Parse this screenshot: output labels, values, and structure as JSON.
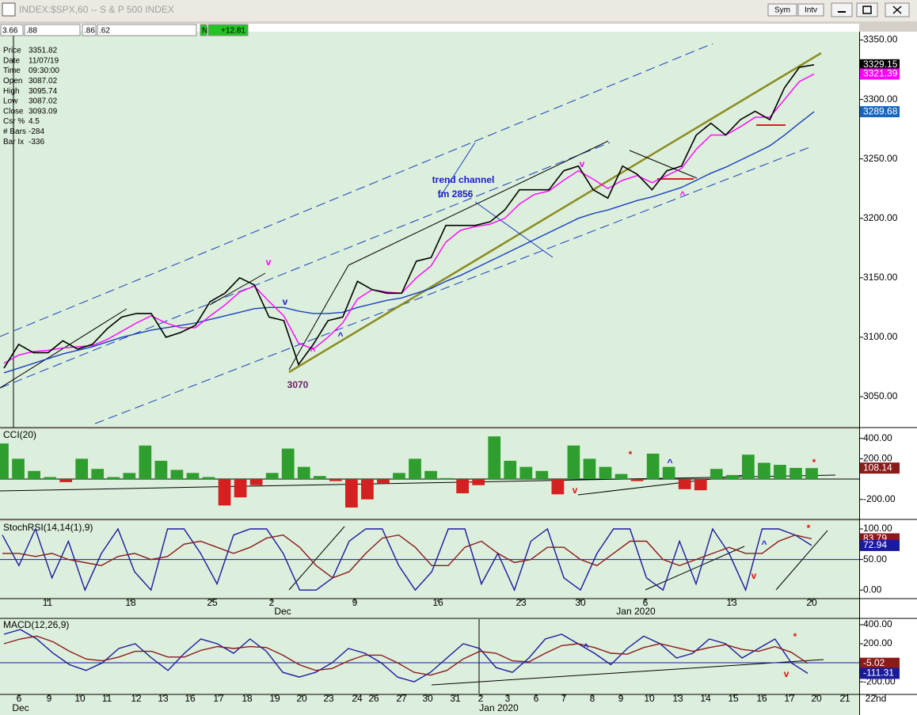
{
  "window": {
    "title": "INDEX:$SPX,60 -- S & P 500 INDEX",
    "buttons": [
      "Sym",
      "Intv"
    ]
  },
  "toolbar": [
    "3.66",
    ".88",
    ".86",
    ".62",
    "N",
    "+12.81"
  ],
  "info": {
    "labels": [
      "Price",
      "Date",
      "Time",
      "Open",
      "High",
      "Low",
      "Close",
      "Csr %",
      "# Bars",
      "Bar Ix"
    ],
    "values": [
      "3351.82",
      "11/07/19",
      "09:30:00",
      "3087.02",
      "3095.74",
      "3087.02",
      "3093.09",
      "4.5",
      "-284",
      "-336"
    ]
  },
  "chart_data": [
    {
      "type": "line",
      "ylim": [
        3024,
        3357
      ],
      "yticks": [
        {
          "value": 3050,
          "label": "3050.00"
        },
        {
          "value": 3100,
          "label": "3100.00"
        },
        {
          "value": 3150,
          "label": "3150.00"
        },
        {
          "value": 3200,
          "label": "3200.00"
        },
        {
          "value": 3250,
          "label": "3250.00"
        },
        {
          "value": 3300,
          "label": "3300.00"
        },
        {
          "value": 3350,
          "label": "3350.00"
        }
      ],
      "series": [
        {
          "color": "#1a3fbf",
          "values": [
            3070,
            3074,
            3078,
            3082,
            3086,
            3089,
            3092,
            3096,
            3100,
            3103,
            3106,
            3108,
            3110,
            3112,
            3115,
            3118,
            3121,
            3124,
            3125,
            3125,
            3122,
            3120,
            3120,
            3121,
            3125,
            3128,
            3131,
            3133,
            3137,
            3141,
            3147,
            3152,
            3158,
            3164,
            3170,
            3176,
            3182,
            3188,
            3194,
            3200,
            3204,
            3207,
            3211,
            3215,
            3218,
            3222,
            3226,
            3232,
            3238,
            3243,
            3249,
            3255,
            3261,
            3270,
            3280,
            3289.68
          ]
        },
        {
          "color": "#ff00ff",
          "values": [
            3078,
            3085,
            3088,
            3089,
            3091,
            3092,
            3093,
            3098,
            3105,
            3112,
            3118,
            3112,
            3108,
            3108,
            3118,
            3127,
            3138,
            3143,
            3130,
            3118,
            3095,
            3090,
            3100,
            3112,
            3132,
            3140,
            3138,
            3137,
            3150,
            3160,
            3180,
            3190,
            3193,
            3195,
            3200,
            3212,
            3220,
            3223,
            3232,
            3240,
            3233,
            3225,
            3232,
            3236,
            3230,
            3236,
            3242,
            3258,
            3270,
            3270,
            3277,
            3285,
            3285,
            3300,
            3315,
            3321.39
          ]
        },
        {
          "color": "#000000",
          "values": [
            3074,
            3094,
            3087,
            3087,
            3097,
            3090,
            3094,
            3107,
            3117,
            3120,
            3120,
            3100,
            3104,
            3110,
            3130,
            3137,
            3150,
            3144,
            3117,
            3114,
            3077,
            3094,
            3114,
            3117,
            3147,
            3140,
            3137,
            3137,
            3164,
            3167,
            3194,
            3194,
            3194,
            3197,
            3207,
            3224,
            3224,
            3224,
            3240,
            3244,
            3224,
            3217,
            3244,
            3237,
            3224,
            3240,
            3244,
            3270,
            3280,
            3270,
            3283,
            3290,
            3283,
            3310,
            3327,
            3329.15
          ]
        }
      ],
      "markers": [
        {
          "value": 3329.15,
          "color": "#000000"
        },
        {
          "value": 3321.39,
          "color": "#ff00ff"
        },
        {
          "value": 3289.68,
          "color": "#1565c0"
        }
      ],
      "annotations": [
        {
          "text": "trend channel",
          "color": "#1a1acc"
        },
        {
          "text": "fm 2856",
          "color": "#1a1acc"
        },
        {
          "text": "3070",
          "color": "#6b1f6b"
        },
        {
          "text": "v",
          "color": "#ff00ff"
        },
        {
          "text": "v",
          "color": "#1a1acc"
        },
        {
          "text": "^",
          "color": "#ff00ff"
        },
        {
          "text": "^",
          "color": "#1a1acc"
        },
        {
          "text": "v",
          "color": "#ff00ff"
        },
        {
          "text": "^",
          "color": "#ff00ff"
        }
      ]
    },
    {
      "type": "bar",
      "title": "CCI(20)",
      "ylim": [
        -397,
        491
      ],
      "yticks": [
        {
          "value": -200,
          "label": "-200.00"
        },
        {
          "value": 200,
          "label": "200.00"
        },
        {
          "value": 400,
          "label": "400.00"
        }
      ],
      "pos_color": "#2e9e2e",
      "neg_color": "#d42020",
      "ref_line": 0,
      "values": [
        350,
        200,
        80,
        20,
        -30,
        200,
        100,
        20,
        60,
        330,
        180,
        90,
        60,
        20,
        -260,
        -180,
        -60,
        60,
        300,
        120,
        30,
        -20,
        -280,
        -200,
        -40,
        60,
        200,
        80,
        10,
        -140,
        -60,
        420,
        180,
        120,
        80,
        -150,
        330,
        200,
        120,
        50,
        -20,
        250,
        120,
        -100,
        -110,
        100,
        40,
        240,
        160,
        140,
        110,
        108.14
      ],
      "markers": [
        {
          "value": 108.14,
          "color": "#8b1a1a"
        }
      ],
      "annotations": [
        {
          "text": "*",
          "color": "#e01010"
        },
        {
          "text": "^",
          "color": "#1a1acc"
        },
        {
          "text": "v",
          "color": "#e01010"
        },
        {
          "text": "*",
          "color": "#e01010"
        }
      ]
    },
    {
      "type": "line",
      "title": "StochRSI(14,14(1),9)",
      "ylim": [
        -14,
        113
      ],
      "yticks": [
        {
          "value": 0,
          "label": "0.00"
        },
        {
          "value": 50,
          "label": "50.00"
        },
        {
          "value": 100,
          "label": "100.00"
        }
      ],
      "ref_line": 50,
      "series": [
        {
          "color": "#1a1aa0",
          "values": [
            90,
            40,
            100,
            20,
            80,
            0,
            60,
            100,
            30,
            0,
            100,
            100,
            60,
            10,
            90,
            100,
            100,
            60,
            0,
            0,
            20,
            80,
            100,
            100,
            40,
            0,
            30,
            100,
            100,
            10,
            60,
            0,
            80,
            100,
            20,
            0,
            60,
            100,
            100,
            20,
            0,
            80,
            10,
            100,
            60,
            0,
            100,
            100,
            90,
            72.94
          ]
        },
        {
          "color": "#8b1a1a",
          "values": [
            60,
            60,
            55,
            60,
            50,
            45,
            40,
            55,
            60,
            50,
            55,
            75,
            80,
            70,
            60,
            70,
            85,
            90,
            70,
            40,
            20,
            30,
            60,
            85,
            90,
            70,
            40,
            40,
            70,
            80,
            60,
            45,
            50,
            70,
            70,
            50,
            40,
            60,
            80,
            80,
            50,
            40,
            50,
            60,
            70,
            60,
            60,
            80,
            90,
            83.79
          ]
        }
      ],
      "markers": [
        {
          "value": 83.79,
          "color": "#8b1a1a"
        },
        {
          "value": 72.94,
          "color": "#1a1aa0"
        }
      ],
      "annotations": [
        {
          "text": "*",
          "color": "#e01010"
        },
        {
          "text": "^",
          "color": "#1a1acc"
        },
        {
          "text": "v",
          "color": "#e01010"
        }
      ]
    },
    {
      "type": "line",
      "title": "MACD(12,26,9)",
      "ylim": [
        -324,
        458
      ],
      "yticks": [
        {
          "value": -200,
          "label": "-200.00"
        },
        {
          "value": 200,
          "label": "200.00"
        },
        {
          "value": 400,
          "label": "400.00"
        }
      ],
      "ref_line": 0,
      "series": [
        {
          "color": "#1a1aa0",
          "values": [
            300,
            350,
            250,
            100,
            -20,
            -80,
            0,
            150,
            200,
            50,
            -80,
            100,
            250,
            200,
            100,
            250,
            120,
            -100,
            -150,
            -100,
            0,
            150,
            100,
            0,
            -150,
            -200,
            -100,
            50,
            200,
            150,
            -50,
            -100,
            50,
            250,
            300,
            200,
            100,
            -20,
            150,
            280,
            200,
            50,
            100,
            250,
            200,
            50,
            150,
            250,
            0,
            -111.31
          ]
        },
        {
          "color": "#8b1a1a",
          "values": [
            200,
            250,
            280,
            220,
            120,
            40,
            20,
            60,
            120,
            120,
            60,
            60,
            130,
            170,
            150,
            170,
            160,
            80,
            -20,
            -80,
            -60,
            20,
            80,
            80,
            0,
            -100,
            -130,
            -80,
            40,
            120,
            100,
            20,
            10,
            100,
            180,
            200,
            160,
            100,
            90,
            160,
            200,
            160,
            120,
            160,
            190,
            140,
            120,
            170,
            110,
            -5.02
          ]
        }
      ],
      "markers": [
        {
          "value": -5.02,
          "color": "#8b1a1a"
        },
        {
          "value": -111.31,
          "color": "#1a1aa0"
        }
      ],
      "annotations": [
        {
          "text": "^",
          "color": "#1a1acc"
        },
        {
          "text": "*",
          "color": "#e01010"
        },
        {
          "text": "v",
          "color": "#e01010"
        }
      ]
    }
  ],
  "top_axis": {
    "days": [
      "11",
      "18",
      "25",
      "2",
      "9",
      "16",
      "23",
      "30",
      "6",
      "13",
      "20"
    ],
    "months": [
      "Dec",
      "Jan 2020"
    ]
  },
  "bottom_axis": {
    "days": [
      "6",
      "9",
      "10",
      "11",
      "12",
      "13",
      "16",
      "17",
      "18",
      "19",
      "20",
      "23",
      "24",
      "26",
      "27",
      "30",
      "31",
      "2",
      "3",
      "6",
      "7",
      "8",
      "9",
      "10",
      "13",
      "14",
      "15",
      "16",
      "17",
      "20",
      "21",
      "22nd"
    ],
    "months": [
      "Dec",
      "Jan 2020"
    ]
  }
}
